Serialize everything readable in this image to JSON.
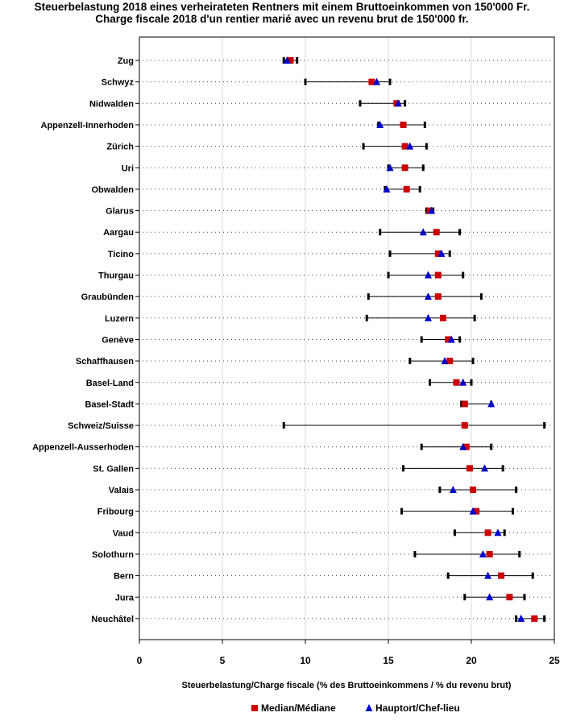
{
  "chart_data": {
    "type": "scatter",
    "title": "Steuerbelastung 2018 eines verheirateten Rentners mit einem Bruttoeinkommen von 150'000 Fr.",
    "subtitle": "Charge fiscale 2018 d'un rentier marié avec un revenu brut de 150'000 fr.",
    "xlabel": "Steuerbelastung/Charge fiscale (% des Bruttoeinkommens / % du revenu brut)",
    "ylabel": "",
    "xlim": [
      0,
      25
    ],
    "xticks": [
      "0",
      "5",
      "10",
      "15",
      "20",
      "25"
    ],
    "grid": "vertical",
    "legend": [
      {
        "name": "Median/Médiane",
        "marker": "square",
        "color": "#cc0000"
      },
      {
        "name": "Hauptort/Chef-lieu",
        "marker": "triangle",
        "color": "#0000cc"
      }
    ],
    "legend_position": "bottom-center",
    "categories": [
      "Zug",
      "Schwyz",
      "Nidwalden",
      "Appenzell-Innerhoden",
      "Zürich",
      "Uri",
      "Obwalden",
      "Glarus",
      "Aargau",
      "Ticino",
      "Thurgau",
      "Graubünden",
      "Luzern",
      "Genève",
      "Schaffhausen",
      "Basel-Land",
      "Basel-Stadt",
      "Schweiz/Suisse",
      "Appenzell-Ausserhoden",
      "St. Gallen",
      "Valais",
      "Fribourg",
      "Vaud",
      "Solothurn",
      "Bern",
      "Jura",
      "Neuchâtel"
    ],
    "series": [
      {
        "name": "Minimum",
        "values": [
          8.7,
          10.0,
          13.3,
          14.4,
          13.5,
          15.0,
          14.8,
          17.3,
          14.5,
          15.1,
          15.0,
          13.8,
          13.7,
          17.0,
          16.3,
          17.5,
          19.4,
          8.7,
          17.0,
          15.9,
          18.1,
          15.8,
          19.0,
          16.6,
          18.6,
          19.6,
          22.7
        ]
      },
      {
        "name": "Maximum",
        "values": [
          9.5,
          15.1,
          16.0,
          17.2,
          17.3,
          17.1,
          16.9,
          17.7,
          19.3,
          18.7,
          19.5,
          20.6,
          20.2,
          19.3,
          20.1,
          20.0,
          21.2,
          24.4,
          21.2,
          21.9,
          22.7,
          22.5,
          22.0,
          22.9,
          23.7,
          23.2,
          24.4
        ]
      },
      {
        "name": "Median/Médiane",
        "values": [
          9.1,
          14.0,
          15.5,
          15.9,
          16.0,
          16.0,
          16.1,
          17.5,
          17.9,
          18.0,
          18.0,
          18.0,
          18.3,
          18.6,
          18.7,
          19.1,
          19.6,
          19.6,
          19.7,
          19.9,
          20.1,
          20.3,
          21.0,
          21.1,
          21.8,
          22.3,
          23.8
        ]
      },
      {
        "name": "Hauptort/Chef-lieu",
        "values": [
          8.9,
          14.3,
          15.6,
          14.5,
          16.3,
          15.1,
          14.9,
          17.6,
          17.1,
          18.2,
          17.4,
          17.4,
          17.4,
          18.8,
          18.4,
          19.5,
          21.2,
          null,
          19.5,
          20.8,
          18.9,
          20.1,
          21.6,
          20.7,
          21.0,
          21.1,
          23.0
        ]
      }
    ]
  }
}
